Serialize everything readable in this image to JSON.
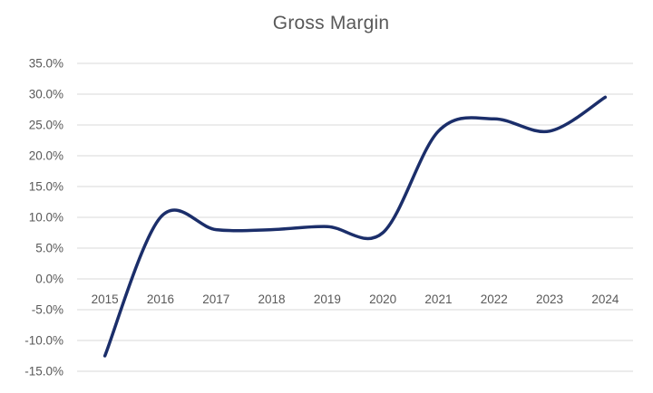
{
  "title": "Gross Margin",
  "chart_data": {
    "type": "line",
    "title": "Gross Margin",
    "categories": [
      "2015",
      "2016",
      "2017",
      "2018",
      "2019",
      "2020",
      "2021",
      "2022",
      "2023",
      "2024"
    ],
    "series": [
      {
        "name": "Gross Margin",
        "values": [
          -12.5,
          10.0,
          8.0,
          8.0,
          8.5,
          7.5,
          24.0,
          26.0,
          24.0,
          29.5
        ]
      }
    ],
    "ylim": [
      -15,
      35
    ],
    "y_tick_step": 5,
    "y_tick_labels": [
      "35.0%",
      "30.0%",
      "25.0%",
      "20.0%",
      "15.0%",
      "10.0%",
      "5.0%",
      "0.0%",
      "-5.0%",
      "-10.0%",
      "-15.0%"
    ],
    "x_labels_position": "below-zero-axis",
    "grid": true,
    "legend": "none",
    "line_style": "smooth",
    "colors": {
      "line": "#1b2e6a",
      "gridline": "#d9d9d9",
      "tick_label": "#595959",
      "title": "#595959",
      "background": "#ffffff"
    }
  }
}
